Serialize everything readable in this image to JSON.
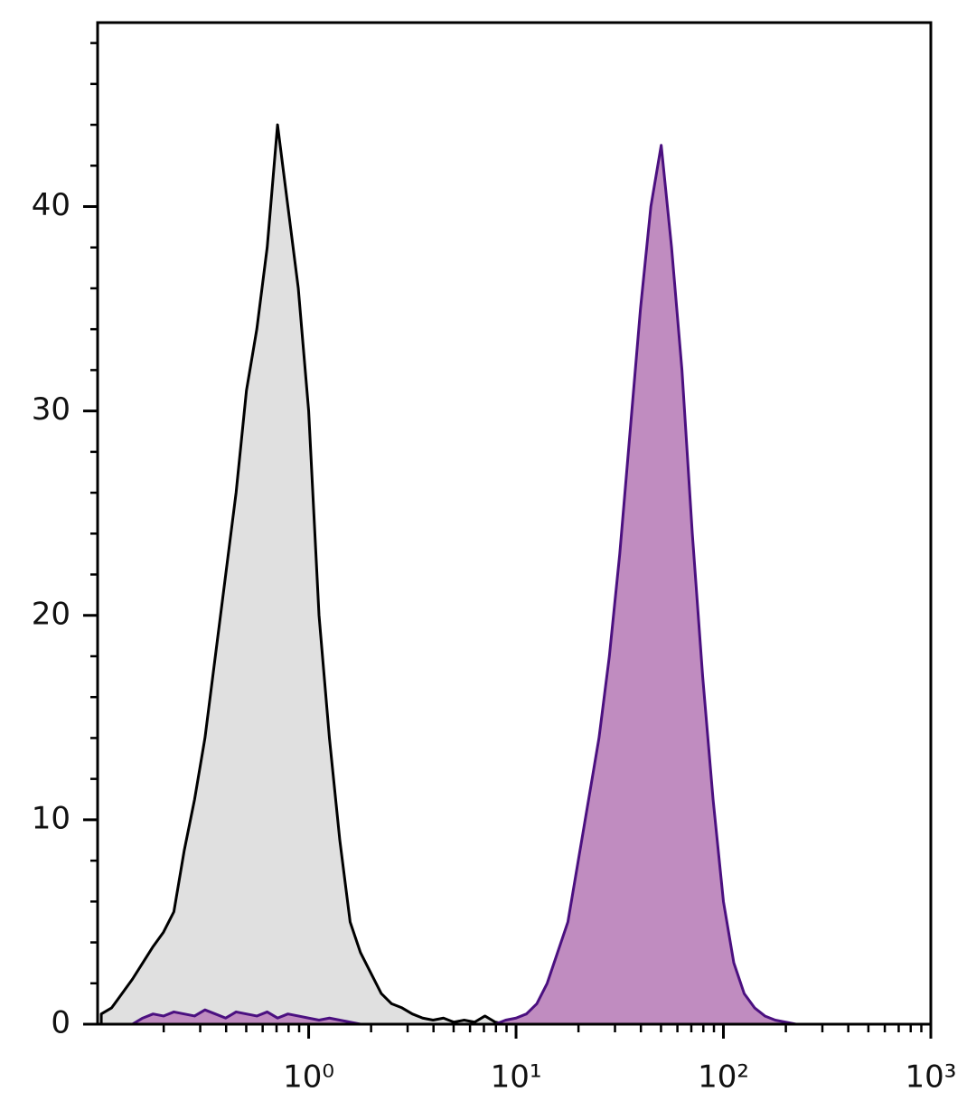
{
  "chart_data": {
    "type": "histogram-area",
    "xscale": "log",
    "xlim": [
      0.096,
      1000
    ],
    "ylim": [
      0,
      49
    ],
    "xticks": [
      {
        "value": 1,
        "label": "10⁰"
      },
      {
        "value": 10,
        "label": "10¹"
      },
      {
        "value": 100,
        "label": "10²"
      },
      {
        "value": 1000,
        "label": "10³"
      }
    ],
    "xminorticks": [
      0.2,
      0.3,
      0.4,
      0.5,
      0.6,
      0.7,
      0.8,
      0.9,
      2,
      3,
      4,
      5,
      6,
      7,
      8,
      9,
      20,
      30,
      40,
      50,
      60,
      70,
      80,
      90,
      200,
      300,
      400,
      500,
      600,
      700,
      800,
      900
    ],
    "yticks": [
      0,
      10,
      20,
      30,
      40
    ],
    "yminorticks": [
      2,
      4,
      6,
      8,
      12,
      14,
      16,
      18,
      22,
      24,
      26,
      28,
      32,
      34,
      36,
      38,
      42,
      44,
      46,
      48
    ],
    "x": [
      0.1,
      0.1122,
      0.1259,
      0.1413,
      0.1585,
      0.1778,
      0.1995,
      0.2239,
      0.2512,
      0.2818,
      0.3162,
      0.3548,
      0.3981,
      0.4467,
      0.5012,
      0.5623,
      0.631,
      0.7079,
      0.7943,
      0.8913,
      1,
      1.122,
      1.259,
      1.413,
      1.585,
      1.778,
      1.995,
      2.239,
      2.512,
      2.818,
      3.162,
      3.548,
      3.981,
      4.467,
      5.012,
      5.623,
      6.31,
      7.079,
      7.943,
      8.913,
      10,
      11.22,
      12.59,
      14.13,
      15.85,
      17.78,
      19.95,
      22.39,
      25.12,
      28.18,
      31.62,
      35.48,
      39.81,
      44.67,
      50.12,
      56.23,
      63.1,
      70.79,
      79.43,
      89.13,
      100,
      112.2,
      125.9,
      141.3,
      158.5,
      177.8,
      199.5,
      223.9,
      251.2,
      281.8,
      316.2,
      354.8,
      398.1,
      446.7,
      501.2,
      562.3,
      631,
      707.9,
      794.3,
      891.3,
      1000
    ],
    "series": [
      {
        "color": "#000000",
        "fill": "#e0e0e0",
        "values": [
          0.5,
          0.8,
          1.5,
          2.2,
          3.0,
          3.8,
          4.5,
          5.5,
          8.5,
          11,
          14,
          18,
          22,
          26,
          31,
          34,
          38,
          44,
          40,
          36,
          30,
          20,
          14,
          9,
          5,
          3.5,
          2.5,
          1.5,
          1.0,
          0.8,
          0.5,
          0.3,
          0.2,
          0.3,
          0.1,
          0.2,
          0.1,
          0.4,
          0.1,
          0,
          0,
          0,
          0,
          0,
          0,
          0,
          0,
          0,
          0,
          0,
          0,
          0,
          0,
          0,
          0,
          0,
          0,
          0,
          0,
          0,
          0,
          0,
          0,
          0,
          0,
          0,
          0,
          0,
          0,
          0,
          0,
          0,
          0,
          0,
          0,
          0,
          0,
          0,
          0,
          0,
          0
        ]
      },
      {
        "color": "#4b1080",
        "fill": "#c08cc0",
        "values": [
          0,
          0,
          0,
          0,
          0.3,
          0.5,
          0.4,
          0.6,
          0.5,
          0.4,
          0.7,
          0.5,
          0.3,
          0.6,
          0.5,
          0.4,
          0.6,
          0.3,
          0.5,
          0.4,
          0.3,
          0.2,
          0.3,
          0.2,
          0.1,
          0,
          0,
          0,
          0,
          0,
          0,
          0,
          0,
          0,
          0,
          0,
          0,
          0,
          0,
          0.2,
          0.3,
          0.5,
          1.0,
          2,
          3.5,
          5,
          8,
          11,
          14,
          18,
          23,
          29,
          35,
          40,
          43,
          38,
          32,
          24,
          17,
          11,
          6,
          3,
          1.5,
          0.8,
          0.4,
          0.2,
          0.1,
          0,
          0,
          0,
          0,
          0,
          0,
          0,
          0,
          0
        ]
      }
    ]
  }
}
